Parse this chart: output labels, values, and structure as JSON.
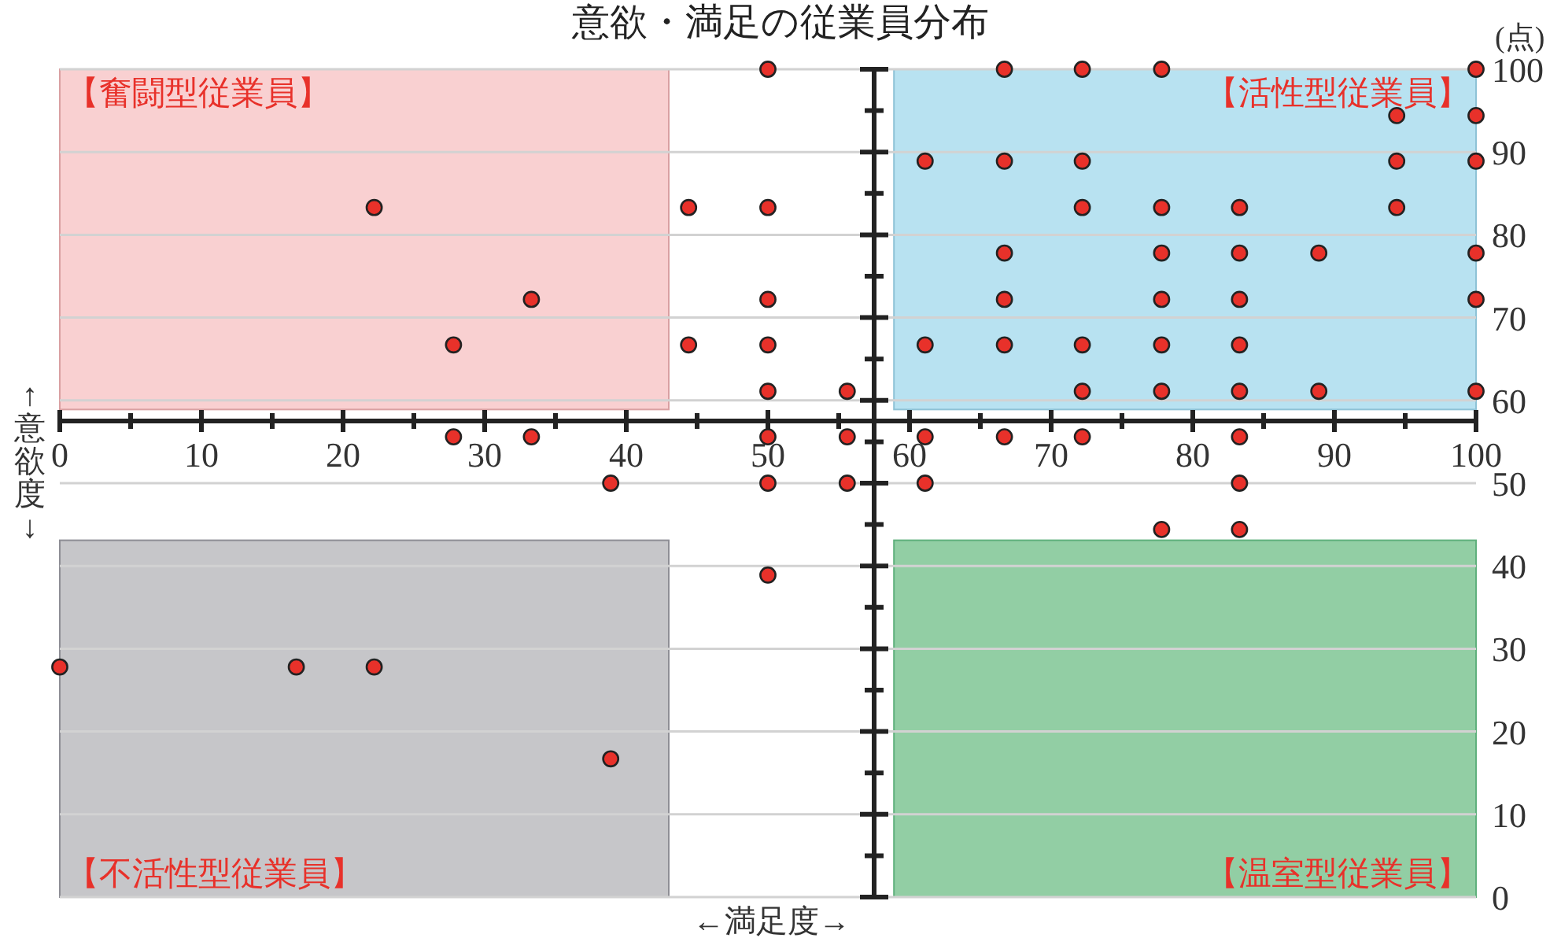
{
  "chart_data": {
    "type": "scatter",
    "title": "意欲・満足の従業員分布",
    "xlabel": "←満足度→",
    "ylabel": "↑意欲度↓",
    "annotations": [
      "【奮闘型従業員】",
      "【活性型従業員】",
      "【不活性型従業員】",
      "【温室型従業員】",
      "(点)"
    ],
    "xlim": [
      0,
      100
    ],
    "ylim": [
      0,
      100
    ],
    "xticks": [
      0,
      10,
      20,
      30,
      40,
      50,
      60,
      70,
      80,
      90,
      100
    ],
    "yticks": [
      0,
      10,
      20,
      30,
      40,
      50,
      60,
      70,
      80,
      90,
      100
    ],
    "grid": "y",
    "marker": "circle",
    "ref_lines": [
      {
        "axis": "x",
        "value": 57.5
      }
    ],
    "series": [
      {
        "type": "scatter",
        "color": "#e8312a",
        "x": [
          22.2,
          33.3,
          27.8,
          44.4,
          44.4,
          50,
          50,
          50,
          50,
          50,
          50,
          50,
          50,
          55.6,
          55.6,
          55.6,
          27.8,
          33.3,
          38.9,
          0,
          16.7,
          22.2,
          38.9,
          61.1,
          61.1,
          61.1,
          61.1,
          66.7,
          66.7,
          66.7,
          66.7,
          66.7,
          66.7,
          72.2,
          72.2,
          72.2,
          72.2,
          72.2,
          72.2,
          77.8,
          77.8,
          77.8,
          77.8,
          77.8,
          77.8,
          77.8,
          83.3,
          83.3,
          83.3,
          83.3,
          83.3,
          83.3,
          83.3,
          83.3,
          88.9,
          88.9,
          94.4,
          94.4,
          94.4,
          100,
          100,
          100,
          100,
          100,
          100
        ],
        "values": [
          83.3,
          72.2,
          66.7,
          83.3,
          66.7,
          100,
          83.3,
          72.2,
          66.7,
          61.1,
          55.6,
          50,
          38.9,
          61.1,
          55.6,
          50,
          55.6,
          55.6,
          50,
          27.8,
          27.8,
          27.8,
          16.7,
          88.9,
          66.7,
          55.6,
          50,
          100,
          88.9,
          77.8,
          72.2,
          66.7,
          55.6,
          100,
          88.9,
          83.3,
          66.7,
          61.1,
          55.6,
          100,
          83.3,
          77.8,
          72.2,
          66.7,
          61.1,
          44.4,
          83.3,
          77.8,
          72.2,
          66.7,
          61.1,
          55.6,
          50,
          44.4,
          77.8,
          61.1,
          94.4,
          88.9,
          83.3,
          100,
          94.4,
          88.9,
          77.8,
          72.2,
          61.1
        ]
      }
    ]
  }
}
